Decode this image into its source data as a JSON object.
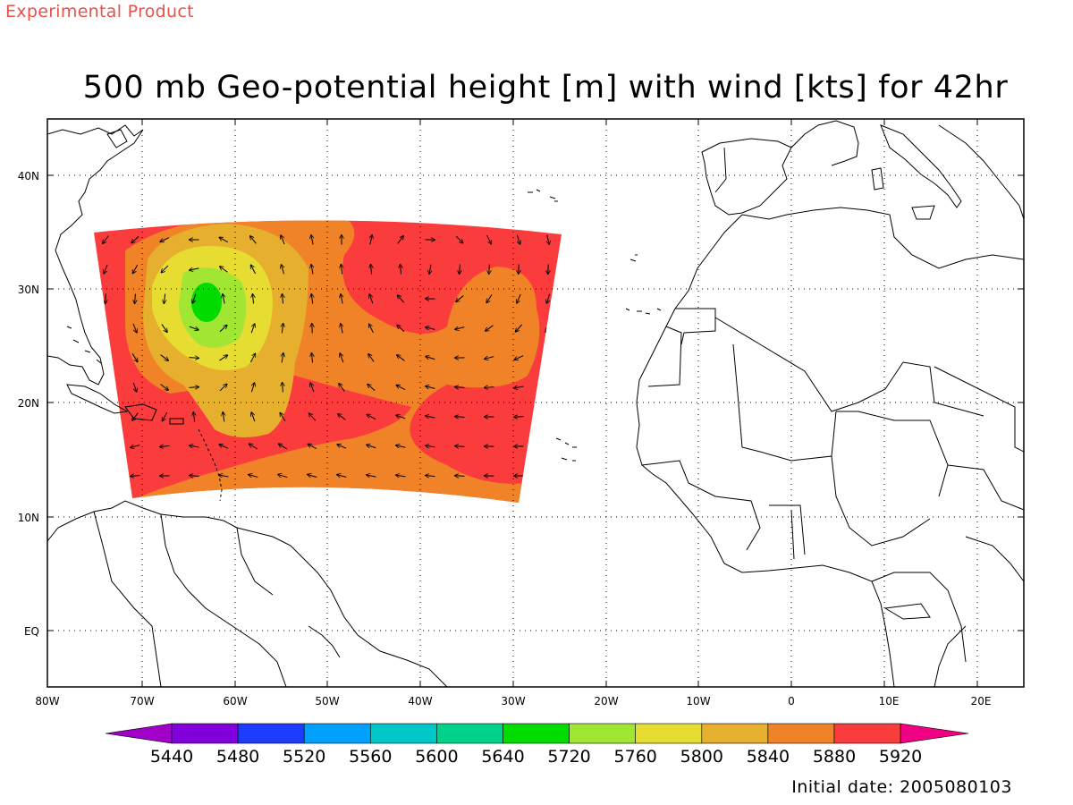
{
  "header": {
    "product_label": "Experimental Product",
    "title": "500 mb Geo-potential height [m] with wind [kts] for 42hr"
  },
  "footer": {
    "initial_date": "Initial date: 2005080103"
  },
  "map": {
    "lon_ticks": [
      "80W",
      "70W",
      "60W",
      "50W",
      "40W",
      "30W",
      "20W",
      "10W",
      "0",
      "10E",
      "20E"
    ],
    "lat_ticks": [
      "40N",
      "30N",
      "20N",
      "10N",
      "EQ"
    ]
  },
  "colorbar": {
    "labels": [
      "5440",
      "5480",
      "5520",
      "5560",
      "5600",
      "5640",
      "5720",
      "5760",
      "5800",
      "5840",
      "5880",
      "5920"
    ],
    "colors": [
      "#a000c8",
      "#8200dc",
      "#1e3cff",
      "#00a0ff",
      "#00c8c8",
      "#00d28c",
      "#00dc00",
      "#a0e632",
      "#e6dc32",
      "#e6af2d",
      "#f08228",
      "#fa3c3c",
      "#f00082"
    ]
  },
  "colors": {
    "field_red": "#fa3c3c",
    "field_orange": "#f08228",
    "field_gold": "#e6af2d",
    "field_yellow": "#e6dc32",
    "field_lightgreen": "#a0e632",
    "field_green": "#00dc00"
  }
}
